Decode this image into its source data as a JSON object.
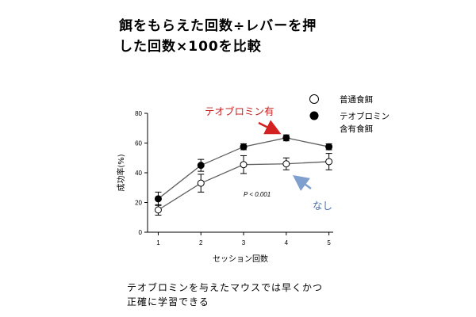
{
  "header": {
    "line1": "餌をもらえた回数÷レバーを押",
    "line2": "した回数×100を比較"
  },
  "footer": {
    "line1": "テオブロミンを与えたマウスでは早くかつ",
    "line2": "正確に学習できる"
  },
  "colors": {
    "line": "#606060",
    "arrow_red": "#d42020",
    "arrow_blue": "#7f9fce",
    "annotation_red": "#c82020",
    "annotation_blue": "#4f6fa6"
  },
  "annotations": {
    "red_label": "テオブロミン有",
    "blue_label": "なし",
    "p_value": "P < 0.001"
  },
  "chart_data": {
    "type": "line",
    "x": [
      1,
      2,
      3,
      4,
      5
    ],
    "xlabel": "セッション回数",
    "ylabel": "成功率(%)",
    "xlim": [
      0.75,
      5.1
    ],
    "ylim": [
      0,
      80
    ],
    "yticks": [
      0,
      20,
      40,
      60,
      80
    ],
    "xticks": [
      1,
      2,
      3,
      4,
      5
    ],
    "grid": false,
    "legend_position": "top-right",
    "series": [
      {
        "name": "普通食餌",
        "marker": "open-circle",
        "values": [
          15,
          33,
          45.5,
          46,
          47.5
        ],
        "error": [
          3.5,
          6,
          6,
          4,
          5.5
        ]
      },
      {
        "name": "テオブロミン含有食餌",
        "name_lines": [
          "テオブロミン",
          "含有食餌"
        ],
        "marker": "filled-circle",
        "values": [
          22.5,
          45,
          57.5,
          63.5,
          57.5
        ],
        "error": [
          4.5,
          4,
          2,
          2,
          2
        ]
      }
    ]
  }
}
